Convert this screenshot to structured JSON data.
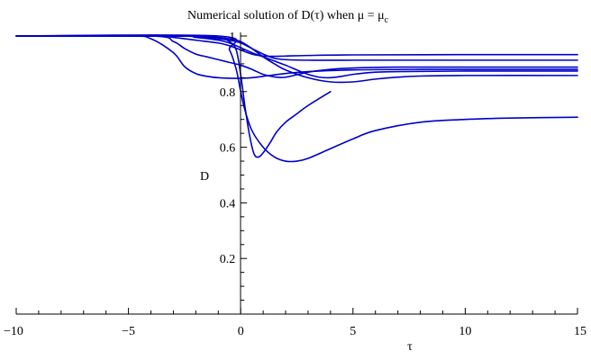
{
  "chart_data": {
    "type": "line",
    "title": "Numerical solution of D(τ) when μ = μ",
    "title_subscript": "c",
    "xlabel": "τ",
    "ylabel": "D",
    "xlim": [
      -10,
      15
    ],
    "ylim": [
      0,
      1
    ],
    "xticks": [
      {
        "value": -10,
        "label": "−10"
      },
      {
        "value": -5,
        "label": "−5"
      },
      {
        "value": 0,
        "label": "0"
      },
      {
        "value": 5,
        "label": "5"
      },
      {
        "value": 10,
        "label": "10"
      },
      {
        "value": 15,
        "label": "15"
      }
    ],
    "yticks": [
      {
        "value": 0.2,
        "label": "0.2"
      },
      {
        "value": 0.4,
        "label": "0.4"
      },
      {
        "value": 0.6,
        "label": "0.6"
      },
      {
        "value": 0.8,
        "label": "0.8"
      },
      {
        "value": 1,
        "label": "1"
      }
    ],
    "grid": false,
    "line_color": "#0000c8",
    "series": [
      {
        "x": [
          -10,
          -4,
          -3,
          -2,
          -1,
          -0.5,
          0,
          0.5,
          1,
          1.5,
          2,
          3,
          5,
          10,
          15
        ],
        "y": [
          1,
          1,
          0.995,
          0.985,
          0.975,
          0.965,
          0.95,
          0.935,
          0.928,
          0.927,
          0.928,
          0.93,
          0.932,
          0.933,
          0.933
        ]
      },
      {
        "x": [
          -10,
          -3,
          -2,
          -1,
          -0.5,
          0,
          0.5,
          1,
          1.5,
          2,
          3,
          5,
          10,
          15
        ],
        "y": [
          1,
          1,
          0.997,
          0.99,
          0.985,
          0.975,
          0.955,
          0.935,
          0.92,
          0.915,
          0.913,
          0.913,
          0.913,
          0.913
        ]
      },
      {
        "x": [
          -10,
          -5,
          -4,
          -3,
          -2.5,
          -2,
          -1.5,
          -1,
          -0.5,
          0,
          0.5,
          1,
          2,
          3,
          5,
          8,
          10,
          15
        ],
        "y": [
          1,
          1,
          0.99,
          0.94,
          0.89,
          0.865,
          0.855,
          0.85,
          0.848,
          0.848,
          0.85,
          0.855,
          0.865,
          0.872,
          0.878,
          0.88,
          0.88,
          0.88
        ]
      },
      {
        "x": [
          -10,
          -4,
          -3,
          -2.5,
          -2,
          -1.5,
          -1,
          -0.5,
          0,
          0.5,
          1,
          1.5,
          2,
          3,
          4,
          5,
          7,
          10,
          15
        ],
        "y": [
          1,
          1,
          0.98,
          0.955,
          0.935,
          0.925,
          0.915,
          0.905,
          0.895,
          0.88,
          0.862,
          0.853,
          0.852,
          0.87,
          0.88,
          0.885,
          0.888,
          0.888,
          0.888
        ]
      },
      {
        "x": [
          -10,
          -3,
          -2,
          -1,
          -0.5,
          0,
          0.5,
          1,
          1.5,
          2,
          2.5,
          3,
          3.5,
          4,
          4.5,
          5,
          6,
          7,
          10,
          15
        ],
        "y": [
          1,
          1,
          0.995,
          0.985,
          0.975,
          0.958,
          0.94,
          0.925,
          0.91,
          0.895,
          0.878,
          0.862,
          0.852,
          0.85,
          0.855,
          0.862,
          0.87,
          0.872,
          0.874,
          0.874
        ]
      },
      {
        "x": [
          -10,
          -3,
          -2,
          -1,
          -0.5,
          0,
          0.5,
          1,
          1.5,
          2,
          3,
          4,
          5,
          6,
          7,
          8,
          10,
          15
        ],
        "y": [
          1,
          1,
          0.998,
          0.995,
          0.99,
          0.98,
          0.955,
          0.925,
          0.9,
          0.878,
          0.85,
          0.835,
          0.835,
          0.845,
          0.852,
          0.856,
          0.858,
          0.858
        ]
      },
      {
        "x": [
          -10,
          -2,
          -1,
          -0.5,
          -0.2,
          0,
          0.2,
          0.4,
          0.6,
          0.8,
          1,
          1.3,
          1.6,
          2,
          2.5,
          3,
          4
        ],
        "y": [
          1,
          1,
          0.995,
          0.98,
          0.95,
          0.86,
          0.74,
          0.64,
          0.575,
          0.565,
          0.58,
          0.615,
          0.655,
          0.69,
          0.72,
          0.75,
          0.8
        ]
      },
      {
        "x": [
          -10,
          -1,
          -0.5,
          -0.2,
          0,
          0.2,
          0.5,
          1,
          1.5,
          2,
          2.5,
          3,
          4,
          5,
          6,
          8,
          10,
          12,
          15
        ],
        "y": [
          1,
          1,
          0.95,
          0.88,
          0.8,
          0.73,
          0.66,
          0.6,
          0.565,
          0.55,
          0.55,
          0.56,
          0.595,
          0.63,
          0.66,
          0.69,
          0.7,
          0.705,
          0.708
        ]
      }
    ]
  }
}
